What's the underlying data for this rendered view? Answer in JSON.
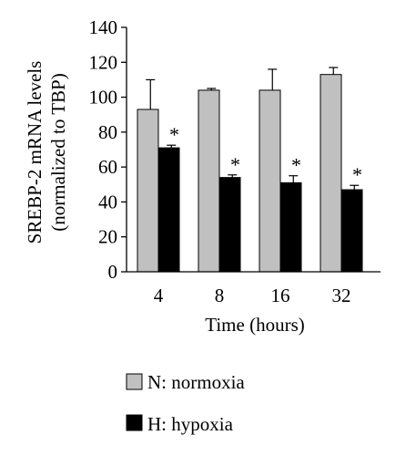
{
  "chart_data": {
    "type": "bar",
    "categories": [
      "4",
      "8",
      "16",
      "32"
    ],
    "series": [
      {
        "name": "N: normoxia",
        "color": "#c0c0c0",
        "values": [
          93,
          104,
          104,
          113
        ],
        "errors": [
          17,
          1,
          12,
          4
        ]
      },
      {
        "name": "H: hypoxia",
        "color": "#000000",
        "values": [
          71,
          54,
          51,
          47
        ],
        "errors": [
          1.5,
          1.5,
          4,
          2.5
        ]
      }
    ],
    "significance": [
      "*",
      "*",
      "*",
      "*"
    ],
    "xlabel": "Time (hours)",
    "ylabel_lines": [
      "SREBP-2 mRNA levels",
      "(normalized to TBP)"
    ],
    "ylim": [
      0,
      140
    ],
    "yticks": [
      0,
      20,
      40,
      60,
      80,
      100,
      120,
      140
    ],
    "grid": false,
    "legend_position": "bottom-left"
  }
}
